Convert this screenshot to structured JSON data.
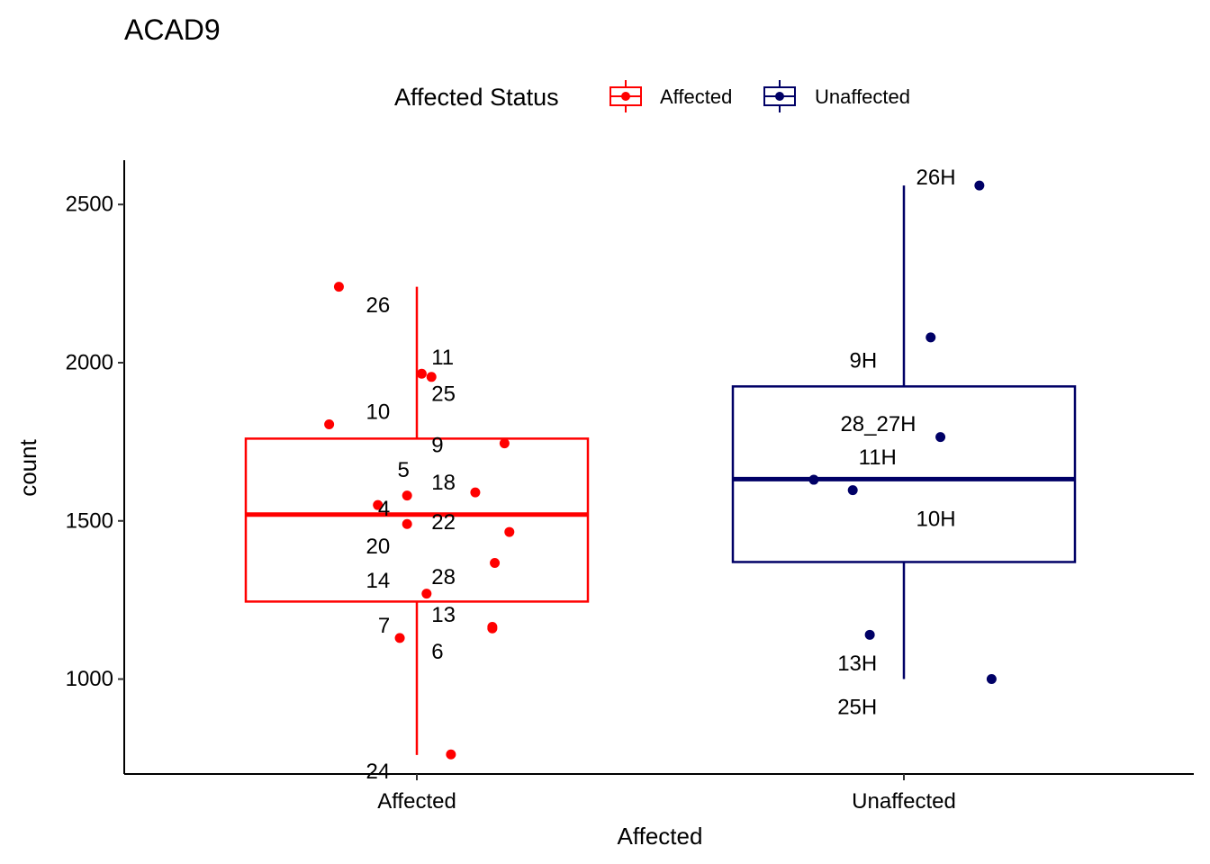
{
  "chart_data": {
    "type": "boxplot",
    "title": "ACAD9",
    "xlabel": "Affected",
    "ylabel": "count",
    "ylim": [
      700,
      2640
    ],
    "yticks": [
      1000,
      1500,
      2000,
      2500
    ],
    "categories": [
      "Affected",
      "Unaffected"
    ],
    "legend": {
      "title": "Affected Status",
      "position": "top",
      "entries": [
        {
          "label": "Affected",
          "color": "#FF0000"
        },
        {
          "label": "Unaffected",
          "color": "#000066"
        }
      ]
    },
    "boxes": [
      {
        "category": "Affected",
        "color": "#FF0000",
        "min": 760,
        "q1": 1245,
        "median": 1520,
        "q3": 1760,
        "max": 2240
      },
      {
        "category": "Unaffected",
        "color": "#000066",
        "min": 1000,
        "q1": 1370,
        "median": 1632,
        "q3": 1925,
        "max": 2560
      }
    ],
    "points": [
      {
        "group": "Affected",
        "jitter": -0.16,
        "y": 2240
      },
      {
        "group": "Affected",
        "jitter": 0.01,
        "y": 1965
      },
      {
        "group": "Affected",
        "jitter": 0.03,
        "y": 1955
      },
      {
        "group": "Affected",
        "jitter": -0.18,
        "y": 1805
      },
      {
        "group": "Affected",
        "jitter": 0.18,
        "y": 1745
      },
      {
        "group": "Affected",
        "jitter": 0.12,
        "y": 1590
      },
      {
        "group": "Affected",
        "jitter": -0.02,
        "y": 1580
      },
      {
        "group": "Affected",
        "jitter": -0.08,
        "y": 1550
      },
      {
        "group": "Affected",
        "jitter": -0.02,
        "y": 1490
      },
      {
        "group": "Affected",
        "jitter": 0.19,
        "y": 1465
      },
      {
        "group": "Affected",
        "jitter": 0.16,
        "y": 1367
      },
      {
        "group": "Affected",
        "jitter": 0.02,
        "y": 1270
      },
      {
        "group": "Affected",
        "jitter": 0.155,
        "y": 1165
      },
      {
        "group": "Affected",
        "jitter": 0.155,
        "y": 1160
      },
      {
        "group": "Affected",
        "jitter": -0.035,
        "y": 1130
      },
      {
        "group": "Affected",
        "jitter": 0.07,
        "y": 762
      },
      {
        "group": "Unaffected",
        "jitter": 0.155,
        "y": 2560
      },
      {
        "group": "Unaffected",
        "jitter": 0.055,
        "y": 2080
      },
      {
        "group": "Unaffected",
        "jitter": 0.075,
        "y": 1765
      },
      {
        "group": "Unaffected",
        "jitter": -0.185,
        "y": 1630
      },
      {
        "group": "Unaffected",
        "jitter": -0.105,
        "y": 1597
      },
      {
        "group": "Unaffected",
        "jitter": -0.07,
        "y": 1140
      },
      {
        "group": "Unaffected",
        "jitter": 0.18,
        "y": 1000
      }
    ],
    "point_labels": [
      {
        "group": "Affected",
        "text": "26",
        "dx": -0.055,
        "y": 2180,
        "anchor": "end"
      },
      {
        "group": "Affected",
        "text": "11",
        "dx": 0.03,
        "y": 2015,
        "anchor": "start"
      },
      {
        "group": "Affected",
        "text": "25",
        "dx": 0.03,
        "y": 1900,
        "anchor": "start"
      },
      {
        "group": "Affected",
        "text": "10",
        "dx": -0.055,
        "y": 1843,
        "anchor": "end"
      },
      {
        "group": "Affected",
        "text": "9",
        "dx": 0.03,
        "y": 1738,
        "anchor": "start"
      },
      {
        "group": "Affected",
        "text": "5",
        "dx": -0.015,
        "y": 1660,
        "anchor": "end"
      },
      {
        "group": "Affected",
        "text": "18",
        "dx": 0.03,
        "y": 1620,
        "anchor": "start"
      },
      {
        "group": "Affected",
        "text": "4",
        "dx": -0.055,
        "y": 1538,
        "anchor": "end"
      },
      {
        "group": "Affected",
        "text": "22",
        "dx": 0.03,
        "y": 1495,
        "anchor": "start"
      },
      {
        "group": "Affected",
        "text": "20",
        "dx": -0.055,
        "y": 1418,
        "anchor": "end"
      },
      {
        "group": "Affected",
        "text": "28",
        "dx": 0.03,
        "y": 1322,
        "anchor": "start"
      },
      {
        "group": "Affected",
        "text": "14",
        "dx": -0.055,
        "y": 1310,
        "anchor": "end"
      },
      {
        "group": "Affected",
        "text": "13",
        "dx": 0.03,
        "y": 1202,
        "anchor": "start"
      },
      {
        "group": "Affected",
        "text": "7",
        "dx": -0.055,
        "y": 1168,
        "anchor": "end"
      },
      {
        "group": "Affected",
        "text": "6",
        "dx": 0.03,
        "y": 1085,
        "anchor": "start"
      },
      {
        "group": "Affected",
        "text": "24",
        "dx": -0.055,
        "y": 707,
        "anchor": "end"
      },
      {
        "group": "Unaffected",
        "text": "26H",
        "dx": 0.025,
        "y": 2585,
        "anchor": "start"
      },
      {
        "group": "Unaffected",
        "text": "9H",
        "dx": -0.055,
        "y": 2005,
        "anchor": "end"
      },
      {
        "group": "Unaffected",
        "text": "28_27H",
        "dx": 0.025,
        "y": 1805,
        "anchor": "end"
      },
      {
        "group": "Unaffected",
        "text": "11H",
        "dx": -0.015,
        "y": 1700,
        "anchor": "end"
      },
      {
        "group": "Unaffected",
        "text": "10H",
        "dx": 0.025,
        "y": 1505,
        "anchor": "start"
      },
      {
        "group": "Unaffected",
        "text": "13H",
        "dx": -0.055,
        "y": 1048,
        "anchor": "end"
      },
      {
        "group": "Unaffected",
        "text": "25H",
        "dx": -0.055,
        "y": 910,
        "anchor": "end"
      }
    ]
  }
}
